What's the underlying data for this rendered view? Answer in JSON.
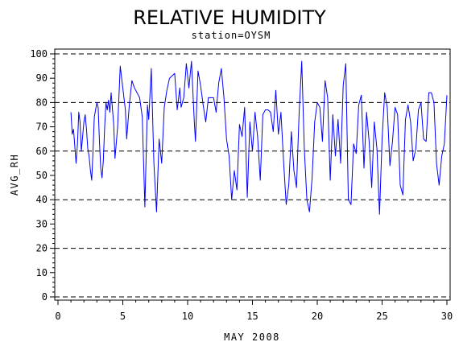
{
  "chart_data": {
    "type": "line",
    "title": "RELATIVE HUMIDITY",
    "subtitle": "station=OYSM",
    "xlabel": "MAY 2008",
    "ylabel": "AVG_RH",
    "xlim": [
      0,
      30
    ],
    "ylim": [
      0,
      100
    ],
    "x_ticks": [
      "0",
      "5",
      "10",
      "15",
      "20",
      "25",
      "30"
    ],
    "y_ticks": [
      "0",
      "10",
      "20",
      "30",
      "40",
      "50",
      "60",
      "70",
      "80",
      "90",
      "100"
    ],
    "dashed_reference_lines": [
      0,
      20,
      40,
      60,
      80,
      100
    ],
    "line_color": "#0000ff",
    "series": [
      {
        "values": [
          [
            1.0,
            76
          ],
          [
            1.1,
            67
          ],
          [
            1.2,
            69
          ],
          [
            1.3,
            62
          ],
          [
            1.4,
            55
          ],
          [
            1.5,
            63
          ],
          [
            1.6,
            76
          ],
          [
            1.7,
            72
          ],
          [
            1.8,
            60
          ],
          [
            1.9,
            66
          ],
          [
            2.0,
            72
          ],
          [
            2.1,
            75
          ],
          [
            2.2,
            69
          ],
          [
            2.3,
            61
          ],
          [
            2.4,
            58
          ],
          [
            2.5,
            52
          ],
          [
            2.6,
            48
          ],
          [
            2.7,
            60
          ],
          [
            2.8,
            74
          ],
          [
            3.0,
            80
          ],
          [
            3.1,
            78
          ],
          [
            3.2,
            64
          ],
          [
            3.3,
            53
          ],
          [
            3.4,
            49
          ],
          [
            3.5,
            56
          ],
          [
            3.6,
            70
          ],
          [
            3.7,
            80
          ],
          [
            3.8,
            77
          ],
          [
            3.9,
            81
          ],
          [
            4.0,
            76
          ],
          [
            4.1,
            84
          ],
          [
            4.3,
            71
          ],
          [
            4.4,
            57
          ],
          [
            4.6,
            70
          ],
          [
            4.8,
            95
          ],
          [
            5.0,
            86
          ],
          [
            5.2,
            77
          ],
          [
            5.3,
            65
          ],
          [
            5.5,
            79
          ],
          [
            5.7,
            89
          ],
          [
            5.9,
            86
          ],
          [
            6.1,
            84
          ],
          [
            6.3,
            82
          ],
          [
            6.5,
            74
          ],
          [
            6.7,
            37
          ],
          [
            6.9,
            79
          ],
          [
            7.0,
            73
          ],
          [
            7.2,
            94
          ],
          [
            7.4,
            55
          ],
          [
            7.6,
            35
          ],
          [
            7.8,
            65
          ],
          [
            8.0,
            55
          ],
          [
            8.2,
            78
          ],
          [
            8.4,
            85
          ],
          [
            8.6,
            90
          ],
          [
            8.8,
            91
          ],
          [
            9.0,
            92
          ],
          [
            9.2,
            77
          ],
          [
            9.4,
            86
          ],
          [
            9.5,
            78
          ],
          [
            9.7,
            82
          ],
          [
            9.9,
            96
          ],
          [
            10.1,
            86
          ],
          [
            10.3,
            97
          ],
          [
            10.5,
            74
          ],
          [
            10.6,
            64
          ],
          [
            10.8,
            93
          ],
          [
            11.0,
            87
          ],
          [
            11.2,
            79
          ],
          [
            11.4,
            72
          ],
          [
            11.6,
            82
          ],
          [
            11.8,
            82
          ],
          [
            12.0,
            82
          ],
          [
            12.2,
            76
          ],
          [
            12.4,
            88
          ],
          [
            12.6,
            94
          ],
          [
            12.8,
            82
          ],
          [
            13.0,
            65
          ],
          [
            13.2,
            58
          ],
          [
            13.4,
            40
          ],
          [
            13.6,
            52
          ],
          [
            13.8,
            44
          ],
          [
            14.0,
            71
          ],
          [
            14.2,
            66
          ],
          [
            14.4,
            78
          ],
          [
            14.6,
            41
          ],
          [
            14.8,
            72
          ],
          [
            15.0,
            60
          ],
          [
            15.2,
            76
          ],
          [
            15.4,
            66
          ],
          [
            15.6,
            48
          ],
          [
            15.8,
            75
          ],
          [
            16.0,
            77
          ],
          [
            16.2,
            77
          ],
          [
            16.4,
            76
          ],
          [
            16.6,
            68
          ],
          [
            16.8,
            85
          ],
          [
            17.0,
            67
          ],
          [
            17.2,
            76
          ],
          [
            17.4,
            56
          ],
          [
            17.6,
            38
          ],
          [
            17.8,
            46
          ],
          [
            18.0,
            68
          ],
          [
            18.2,
            52
          ],
          [
            18.4,
            45
          ],
          [
            18.6,
            76
          ],
          [
            18.8,
            97
          ],
          [
            19.0,
            61
          ],
          [
            19.2,
            40
          ],
          [
            19.4,
            35
          ],
          [
            19.6,
            49
          ],
          [
            19.8,
            72
          ],
          [
            20.0,
            80
          ],
          [
            20.2,
            78
          ],
          [
            20.4,
            64
          ],
          [
            20.6,
            89
          ],
          [
            20.8,
            82
          ],
          [
            21.0,
            48
          ],
          [
            21.2,
            75
          ],
          [
            21.4,
            58
          ],
          [
            21.6,
            73
          ],
          [
            21.8,
            55
          ],
          [
            22.0,
            87
          ],
          [
            22.2,
            96
          ],
          [
            22.4,
            40
          ],
          [
            22.6,
            38
          ],
          [
            22.8,
            63
          ],
          [
            23.0,
            59
          ],
          [
            23.2,
            79
          ],
          [
            23.4,
            83
          ],
          [
            23.6,
            53
          ],
          [
            23.8,
            76
          ],
          [
            24.0,
            64
          ],
          [
            24.2,
            45
          ],
          [
            24.4,
            72
          ],
          [
            24.6,
            61
          ],
          [
            24.8,
            34
          ],
          [
            25.0,
            65
          ],
          [
            25.2,
            84
          ],
          [
            25.4,
            78
          ],
          [
            25.6,
            54
          ],
          [
            25.8,
            64
          ],
          [
            26.0,
            78
          ],
          [
            26.2,
            75
          ],
          [
            26.4,
            46
          ],
          [
            26.6,
            42
          ],
          [
            26.8,
            73
          ],
          [
            27.0,
            79
          ],
          [
            27.2,
            72
          ],
          [
            27.4,
            56
          ],
          [
            27.6,
            61
          ],
          [
            27.8,
            77
          ],
          [
            28.0,
            80
          ],
          [
            28.2,
            65
          ],
          [
            28.4,
            64
          ],
          [
            28.6,
            84
          ],
          [
            28.8,
            84
          ],
          [
            29.0,
            80
          ],
          [
            29.2,
            55
          ],
          [
            29.4,
            46
          ],
          [
            29.6,
            58
          ],
          [
            29.8,
            63
          ],
          [
            30.0,
            83
          ]
        ]
      }
    ]
  }
}
